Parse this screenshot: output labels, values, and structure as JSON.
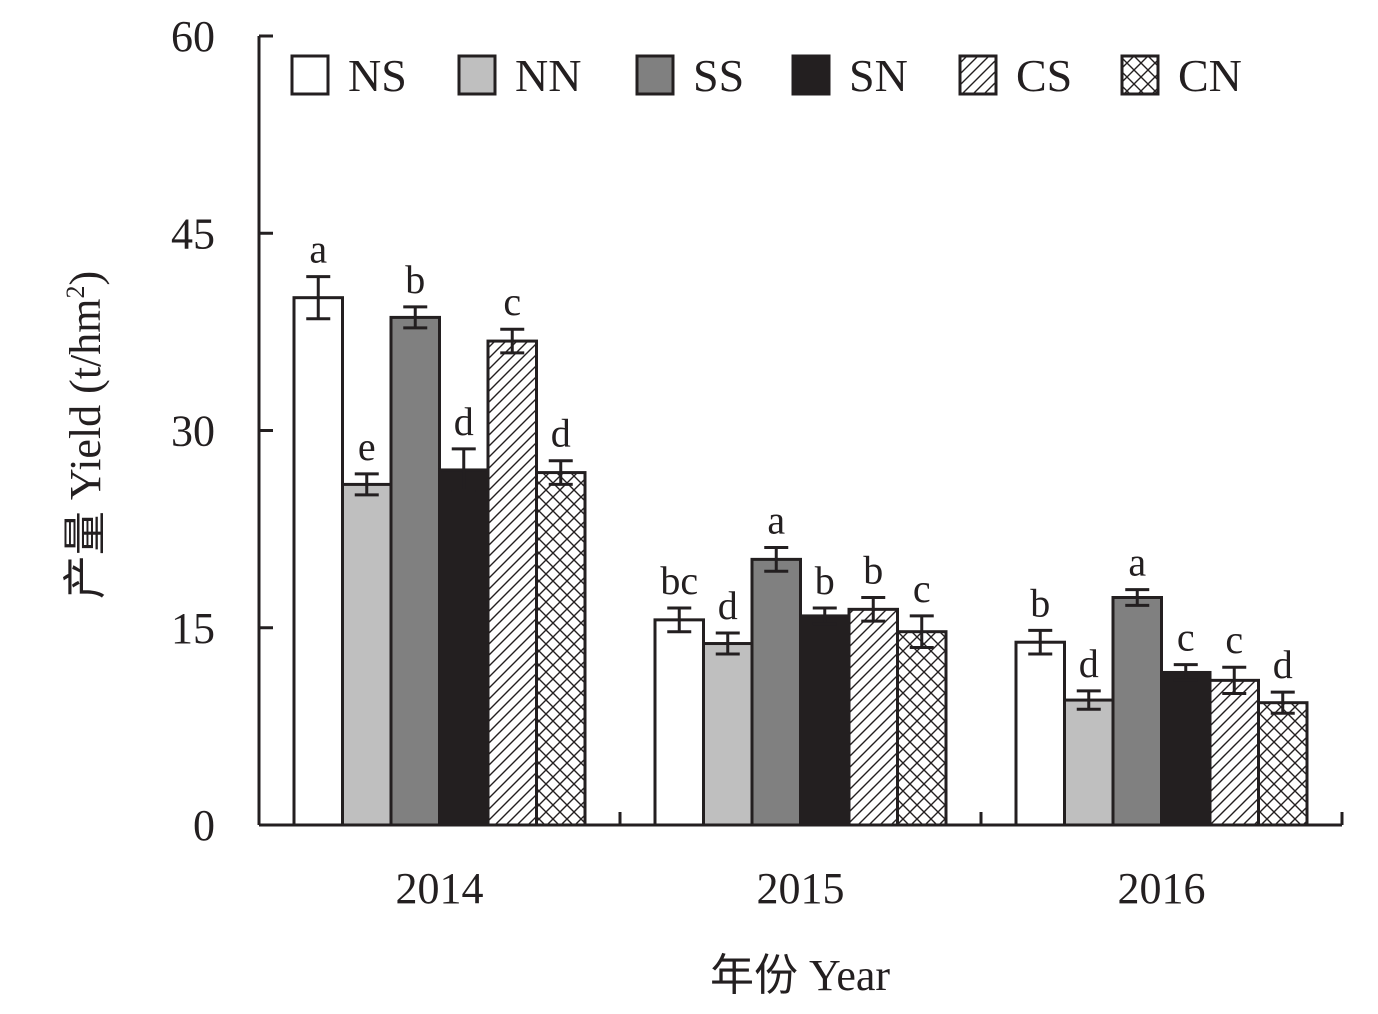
{
  "chart_data": {
    "type": "bar",
    "xlabel": "年份 Year",
    "ylabel_main": "产量 Yield (t/hm",
    "ylabel_sup": "2",
    "ylabel_close": ")",
    "ylim": [
      0,
      60
    ],
    "yticks": [
      "0",
      "15",
      "30",
      "45",
      "60"
    ],
    "categories": [
      "2014",
      "2015",
      "2016"
    ],
    "legend_position": "top",
    "series": [
      {
        "name": "NS",
        "fill": "#ffffff",
        "values": [
          40.1,
          15.6,
          13.9
        ],
        "errors": [
          1.6,
          0.9,
          0.9
        ],
        "letters": [
          "a",
          "bc",
          "b"
        ]
      },
      {
        "name": "NN",
        "fill": "#bfbfbf",
        "values": [
          25.9,
          13.8,
          9.5
        ],
        "errors": [
          0.8,
          0.8,
          0.7
        ],
        "letters": [
          "e",
          "d",
          "d"
        ]
      },
      {
        "name": "SS",
        "fill": "#808080",
        "values": [
          38.6,
          20.2,
          17.3
        ],
        "errors": [
          0.8,
          0.9,
          0.6
        ],
        "letters": [
          "b",
          "a",
          "a"
        ]
      },
      {
        "name": "SN",
        "fill": "#231f20",
        "values": [
          27.0,
          15.9,
          11.6
        ],
        "errors": [
          1.6,
          0.6,
          0.6
        ],
        "letters": [
          "d",
          "b",
          "c"
        ]
      },
      {
        "name": "CS",
        "fill": "hatch-diagonal",
        "values": [
          36.8,
          16.4,
          11.0
        ],
        "errors": [
          0.9,
          0.9,
          1.0
        ],
        "letters": [
          "c",
          "b",
          "c"
        ]
      },
      {
        "name": "CN",
        "fill": "hatch-cross",
        "values": [
          26.8,
          14.7,
          9.3
        ],
        "errors": [
          0.9,
          1.2,
          0.8
        ],
        "letters": [
          "d",
          "c",
          "d"
        ]
      }
    ]
  }
}
